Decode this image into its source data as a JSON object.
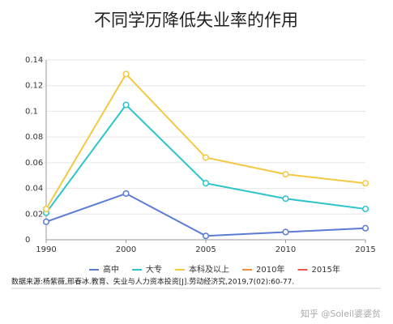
{
  "chart_data": {
    "type": "line",
    "title": "不同学历降低失业率的作用",
    "categories": [
      "1990",
      "2000",
      "2005",
      "2010",
      "2015"
    ],
    "series": [
      {
        "name": "高中",
        "color": "#5b7bd5",
        "values": [
          0.014,
          0.036,
          0.003,
          0.006,
          0.009
        ]
      },
      {
        "name": "大专",
        "color": "#2ec4cc",
        "values": [
          0.021,
          0.105,
          0.044,
          0.032,
          0.024
        ]
      },
      {
        "name": "本科及以上",
        "color": "#f5c842",
        "values": [
          0.024,
          0.129,
          0.064,
          0.051,
          0.044
        ]
      },
      {
        "name": "2010年",
        "color": "#f28c3c",
        "values": [
          null,
          null,
          null,
          null,
          null
        ]
      },
      {
        "name": "2015年",
        "color": "#e8584a",
        "values": [
          null,
          null,
          null,
          null,
          null
        ]
      }
    ],
    "ylim": [
      0,
      0.14
    ],
    "yticks": [
      0,
      0.02,
      0.04,
      0.06,
      0.08,
      0.1,
      0.12,
      0.14
    ],
    "grid": true,
    "legend": "bottom",
    "source": "数据来源:杨紫薇,邢春冰.教育、失业与人力资本投资[J].劳动经济究,2019,7(02):60-77.",
    "watermark": "知乎 @Soleil婆婆贫"
  }
}
